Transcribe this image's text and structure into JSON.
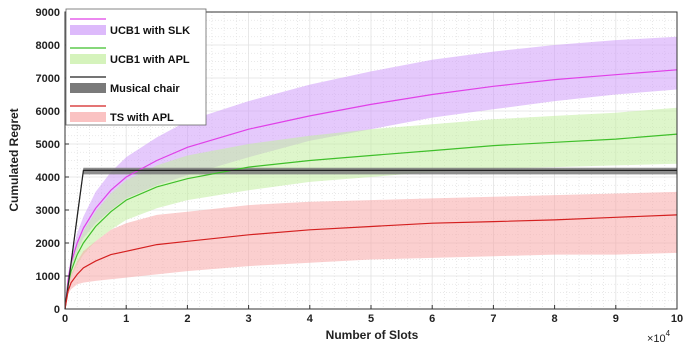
{
  "chart_data": {
    "type": "line",
    "xlabel": "Number of Slots",
    "ylabel": "Cumulated Regret",
    "x_exponent_label": "×10",
    "x_exponent_power": "4",
    "xlim": [
      0,
      100000
    ],
    "ylim": [
      0,
      9000
    ],
    "x_ticks": [
      0,
      10000,
      20000,
      30000,
      40000,
      50000,
      60000,
      70000,
      80000,
      90000,
      100000
    ],
    "x_tick_labels": [
      "0",
      "1",
      "2",
      "3",
      "4",
      "5",
      "6",
      "7",
      "8",
      "9",
      "10"
    ],
    "y_ticks": [
      0,
      1000,
      2000,
      3000,
      4000,
      5000,
      6000,
      7000,
      8000,
      9000
    ],
    "y_tick_labels": [
      "0",
      "1000",
      "2000",
      "3000",
      "4000",
      "5000",
      "6000",
      "7000",
      "8000",
      "9000"
    ],
    "grid": true,
    "legend_position": "top-left",
    "x": [
      0,
      500,
      1000,
      2000,
      3000,
      5000,
      7500,
      10000,
      15000,
      20000,
      30000,
      40000,
      50000,
      60000,
      70000,
      80000,
      90000,
      100000
    ],
    "series": [
      {
        "name": "UCB1 with SLK",
        "band_label": "UCB1 with SLK",
        "color": "#e040e8",
        "band_color": "#cf9cfa",
        "mean": [
          0,
          900,
          1400,
          2000,
          2450,
          3050,
          3600,
          4000,
          4500,
          4900,
          5450,
          5850,
          6200,
          6500,
          6750,
          6950,
          7100,
          7250
        ],
        "lower": [
          0,
          750,
          1200,
          1750,
          2150,
          2600,
          3000,
          3350,
          3750,
          4050,
          4600,
          5100,
          5450,
          5800,
          6050,
          6300,
          6500,
          6650
        ],
        "upper": [
          0,
          1050,
          1600,
          2300,
          2800,
          3550,
          4150,
          4600,
          5200,
          5700,
          6300,
          6800,
          7200,
          7550,
          7800,
          8000,
          8150,
          8250
        ]
      },
      {
        "name": "UCB1 with APL",
        "band_label": "UCB1 with APL",
        "color": "#3fbf2a",
        "band_color": "#c3eea0",
        "mean": [
          0,
          750,
          1150,
          1650,
          2000,
          2500,
          2950,
          3300,
          3700,
          3950,
          4300,
          4500,
          4650,
          4800,
          4950,
          5050,
          5150,
          5300
        ],
        "lower": [
          0,
          600,
          950,
          1350,
          1650,
          2050,
          2400,
          2700,
          3050,
          3300,
          3600,
          3850,
          4000,
          4150,
          4250,
          4300,
          4350,
          4400
        ],
        "upper": [
          0,
          900,
          1350,
          1950,
          2350,
          2950,
          3500,
          3900,
          4350,
          4650,
          5000,
          5250,
          5450,
          5600,
          5750,
          5850,
          5950,
          6100
        ]
      },
      {
        "name": "Musical chair",
        "band_label": "Musical chair",
        "color": "#222222",
        "band_color": "#7a7a7a",
        "mean": [
          0,
          700,
          1400,
          2800,
          4200,
          4200,
          4200,
          4200,
          4200,
          4200,
          4200,
          4200,
          4200,
          4200,
          4200,
          4200,
          4200,
          4200
        ],
        "lower": [
          0,
          650,
          1300,
          2650,
          4080,
          4080,
          4080,
          4080,
          4080,
          4080,
          4080,
          4080,
          4080,
          4080,
          4080,
          4080,
          4080,
          4080
        ],
        "upper": [
          0,
          750,
          1500,
          2950,
          4280,
          4280,
          4280,
          4280,
          4280,
          4280,
          4280,
          4280,
          4280,
          4280,
          4280,
          4280,
          4280,
          4280
        ]
      },
      {
        "name": "TS with APL",
        "band_label": "TS with APL",
        "color": "#d42020",
        "band_color": "#f8a8a8",
        "mean": [
          0,
          550,
          800,
          1050,
          1250,
          1450,
          1650,
          1750,
          1950,
          2050,
          2250,
          2400,
          2500,
          2600,
          2650,
          2700,
          2780,
          2850
        ],
        "lower": [
          0,
          450,
          600,
          750,
          800,
          850,
          900,
          950,
          1050,
          1150,
          1300,
          1400,
          1500,
          1550,
          1600,
          1650,
          1650,
          1700
        ],
        "upper": [
          0,
          700,
          1050,
          1450,
          1750,
          2050,
          2400,
          2600,
          2850,
          2950,
          3150,
          3250,
          3300,
          3350,
          3400,
          3450,
          3500,
          3550
        ]
      }
    ]
  }
}
